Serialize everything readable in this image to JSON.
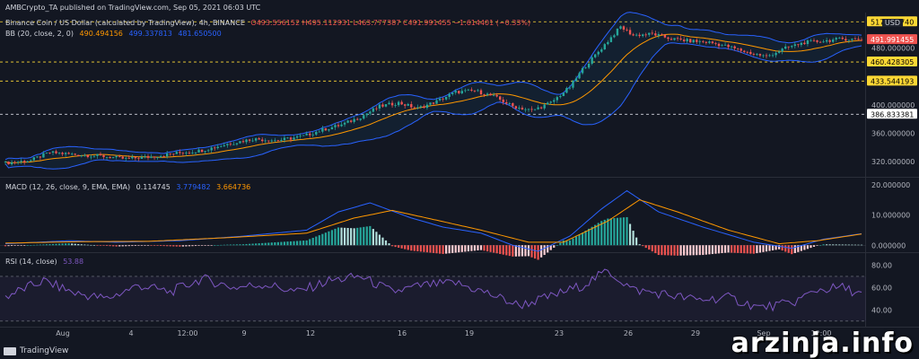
{
  "header": {
    "publisher": "AMBCrypto_TA published on TradingView.com, Sep 05, 2021 06:03 UTC"
  },
  "main_legend": {
    "symbol": "Binance Coin / US Dollar (calculated by TradingView), 4h, BINANCE",
    "ohlc": "O493.556152  H495.112931  L463.777387  C491.991455  −1.614401 (−0.33%)"
  },
  "bb_legend": {
    "label": "BB (20, close, 2, 0)",
    "basis": "490.494156",
    "upper": "499.337813",
    "lower": "481.650500"
  },
  "macd_legend": {
    "label": "MACD (12, 26, close, 9, EMA, EMA)",
    "hist": "0.114745",
    "macd": "3.779482",
    "signal": "3.664736"
  },
  "rsi_legend": {
    "label": "RSI (14, close)",
    "value": "53.88"
  },
  "currency": "USD",
  "price_tags": [
    {
      "value": "517.020740",
      "price": 517.02,
      "bg": "#fdd835",
      "fg": "#000000"
    },
    {
      "value": "491.991455",
      "price": 491.99,
      "bg": "#ef5350",
      "fg": "#ffffff"
    },
    {
      "value": "460.428305",
      "price": 460.43,
      "bg": "#fdd835",
      "fg": "#000000"
    },
    {
      "value": "433.544193",
      "price": 433.54,
      "bg": "#fdd835",
      "fg": "#000000"
    },
    {
      "value": "386.833381",
      "price": 386.83,
      "bg": "#ffffff",
      "fg": "#000000"
    }
  ],
  "watermark": "arzinja.info",
  "tv_brand": "TradingView",
  "colors": {
    "up": "#26a69a",
    "down": "#ef5350",
    "bb_band": "#2962ff",
    "bb_basis": "#ff9800",
    "macd": "#2962ff",
    "signal": "#ff9800",
    "rsi": "#7e57c2",
    "hline": "#fdd835"
  },
  "chart_data": [
    {
      "type": "candlestick",
      "title": "Binance Coin / US Dollar (calculated by TradingView), 4h, BINANCE",
      "ylim": [
        300,
        530
      ],
      "y_ticks": [
        "480.000000",
        "400.000000",
        "360.000000",
        "320.000000"
      ],
      "y_tick_values": [
        480,
        400,
        360,
        320
      ],
      "x_tick_labels": [
        "Aug",
        "4",
        "12:00",
        "9",
        "12",
        "16",
        "19",
        "23",
        "26",
        "29",
        "Sep",
        "12:00"
      ],
      "horizontal_levels": [
        517.02,
        460.43,
        433.54,
        386.83
      ],
      "close_path": [
        [
          0,
          318
        ],
        [
          8,
          322
        ],
        [
          14,
          333
        ],
        [
          22,
          330
        ],
        [
          30,
          328
        ],
        [
          38,
          324
        ],
        [
          46,
          327
        ],
        [
          54,
          332
        ],
        [
          62,
          336
        ],
        [
          70,
          345
        ],
        [
          78,
          352
        ],
        [
          86,
          350
        ],
        [
          94,
          356
        ],
        [
          100,
          365
        ],
        [
          106,
          372
        ],
        [
          112,
          383
        ],
        [
          118,
          398
        ],
        [
          124,
          403
        ],
        [
          130,
          395
        ],
        [
          136,
          405
        ],
        [
          142,
          418
        ],
        [
          148,
          420
        ],
        [
          154,
          412
        ],
        [
          160,
          398
        ],
        [
          166,
          392
        ],
        [
          172,
          403
        ],
        [
          178,
          425
        ],
        [
          182,
          450
        ],
        [
          186,
          470
        ],
        [
          190,
          490
        ],
        [
          194,
          510
        ],
        [
          198,
          498
        ],
        [
          204,
          500
        ],
        [
          210,
          493
        ],
        [
          216,
          490
        ],
        [
          222,
          488
        ],
        [
          228,
          482
        ],
        [
          234,
          474
        ],
        [
          240,
          468
        ],
        [
          246,
          480
        ],
        [
          252,
          488
        ],
        [
          258,
          490
        ],
        [
          264,
          493
        ],
        [
          270,
          492
        ]
      ]
    },
    {
      "type": "bar+line",
      "title": "MACD (12, 26, close, 9, EMA, EMA)",
      "ylim": [
        -2,
        22
      ],
      "y_ticks": [
        "20.000000",
        "10.000000",
        "0.000000"
      ],
      "y_tick_values": [
        20,
        10,
        0
      ],
      "macd_path": [
        [
          0,
          0.5
        ],
        [
          20,
          1.5
        ],
        [
          35,
          1
        ],
        [
          55,
          1.5
        ],
        [
          75,
          3
        ],
        [
          95,
          5
        ],
        [
          105,
          11
        ],
        [
          115,
          14
        ],
        [
          128,
          9
        ],
        [
          138,
          6
        ],
        [
          150,
          4
        ],
        [
          160,
          0
        ],
        [
          168,
          -2
        ],
        [
          178,
          3
        ],
        [
          188,
          12
        ],
        [
          196,
          18
        ],
        [
          206,
          11
        ],
        [
          220,
          6
        ],
        [
          236,
          1
        ],
        [
          248,
          -1
        ],
        [
          258,
          2
        ],
        [
          270,
          3.8
        ]
      ],
      "signal_path": [
        [
          0,
          0.7
        ],
        [
          25,
          1.2
        ],
        [
          45,
          1.3
        ],
        [
          70,
          2.5
        ],
        [
          95,
          4
        ],
        [
          110,
          9
        ],
        [
          122,
          11.5
        ],
        [
          135,
          8.5
        ],
        [
          150,
          5
        ],
        [
          165,
          1
        ],
        [
          176,
          1
        ],
        [
          190,
          8
        ],
        [
          200,
          15
        ],
        [
          212,
          11
        ],
        [
          228,
          5
        ],
        [
          244,
          0.5
        ],
        [
          256,
          1.5
        ],
        [
          270,
          3.7
        ]
      ],
      "histogram_last": 0.114745
    },
    {
      "type": "line",
      "title": "RSI (14, close)",
      "ylim": [
        25,
        90
      ],
      "y_ticks": [
        "80.00",
        "60.00",
        "40.00"
      ],
      "y_tick_values": [
        80,
        60,
        40
      ],
      "bands": [
        70,
        30
      ],
      "rsi_path": [
        [
          0,
          52
        ],
        [
          12,
          66
        ],
        [
          22,
          55
        ],
        [
          32,
          50
        ],
        [
          42,
          62
        ],
        [
          52,
          56
        ],
        [
          62,
          68
        ],
        [
          72,
          60
        ],
        [
          82,
          63
        ],
        [
          92,
          56
        ],
        [
          102,
          66
        ],
        [
          112,
          70
        ],
        [
          122,
          56
        ],
        [
          132,
          62
        ],
        [
          142,
          64
        ],
        [
          152,
          55
        ],
        [
          162,
          44
        ],
        [
          172,
          52
        ],
        [
          182,
          62
        ],
        [
          190,
          75
        ],
        [
          198,
          58
        ],
        [
          208,
          54
        ],
        [
          218,
          49
        ],
        [
          228,
          51
        ],
        [
          238,
          42
        ],
        [
          248,
          46
        ],
        [
          256,
          58
        ],
        [
          264,
          60
        ],
        [
          270,
          54
        ]
      ]
    }
  ]
}
